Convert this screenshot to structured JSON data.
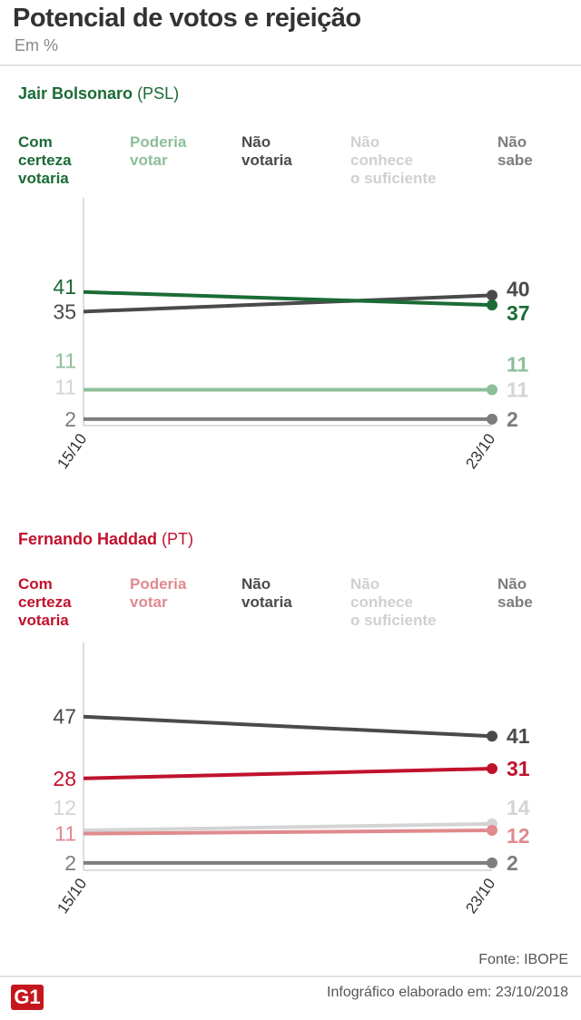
{
  "header": {
    "title": "Potencial de votos e rejeição",
    "subtitle": "Em %"
  },
  "chart_data": [
    {
      "type": "line",
      "candidate": "Jair Bolsonaro",
      "party": "(PSL)",
      "categories": [
        "15/10",
        "23/10"
      ],
      "series": [
        {
          "name": "Com certeza votaria",
          "values": [
            41,
            37
          ],
          "color": "#1b6b35"
        },
        {
          "name": "Poderia votar",
          "values": [
            11,
            11
          ],
          "color": "#8dbf98"
        },
        {
          "name": "Não votaria",
          "values": [
            35,
            40
          ],
          "color": "#4a4a4a"
        },
        {
          "name": "Não conhece o suficiente",
          "values": [
            11,
            11
          ],
          "color": "#d4d4d4"
        },
        {
          "name": "Não sabe",
          "values": [
            2,
            2
          ],
          "color": "#7d7d7d"
        }
      ],
      "legend": [
        [
          "Com",
          "certeza",
          "votaria"
        ],
        [
          "Poderia",
          "votar"
        ],
        [
          "Não",
          "votaria"
        ],
        [
          "Não",
          "conhece",
          "o suficiente"
        ],
        [
          "Não",
          "sabe"
        ]
      ]
    },
    {
      "type": "line",
      "candidate": "Fernando Haddad",
      "party": "(PT)",
      "categories": [
        "15/10",
        "23/10"
      ],
      "series": [
        {
          "name": "Com certeza votaria",
          "values": [
            28,
            31
          ],
          "color": "#c0122c"
        },
        {
          "name": "Poderia votar",
          "values": [
            11,
            12
          ],
          "color": "#e08a8e"
        },
        {
          "name": "Não votaria",
          "values": [
            47,
            41
          ],
          "color": "#4a4a4a"
        },
        {
          "name": "Não conhece o suficiente",
          "values": [
            12,
            14
          ],
          "color": "#d4d4d4"
        },
        {
          "name": "Não sabe",
          "values": [
            2,
            2
          ],
          "color": "#7d7d7d"
        }
      ],
      "legend": [
        [
          "Com",
          "certeza",
          "votaria"
        ],
        [
          "Poderia",
          "votar"
        ],
        [
          "Não",
          "votaria"
        ],
        [
          "Não",
          "conhece",
          "o suficiente"
        ],
        [
          "Não",
          "sabe"
        ]
      ]
    }
  ],
  "footer": {
    "source": "Fonte: IBOPE",
    "credit": "Infográfico elaborado em: 23/10/2018",
    "logo": "G1"
  }
}
